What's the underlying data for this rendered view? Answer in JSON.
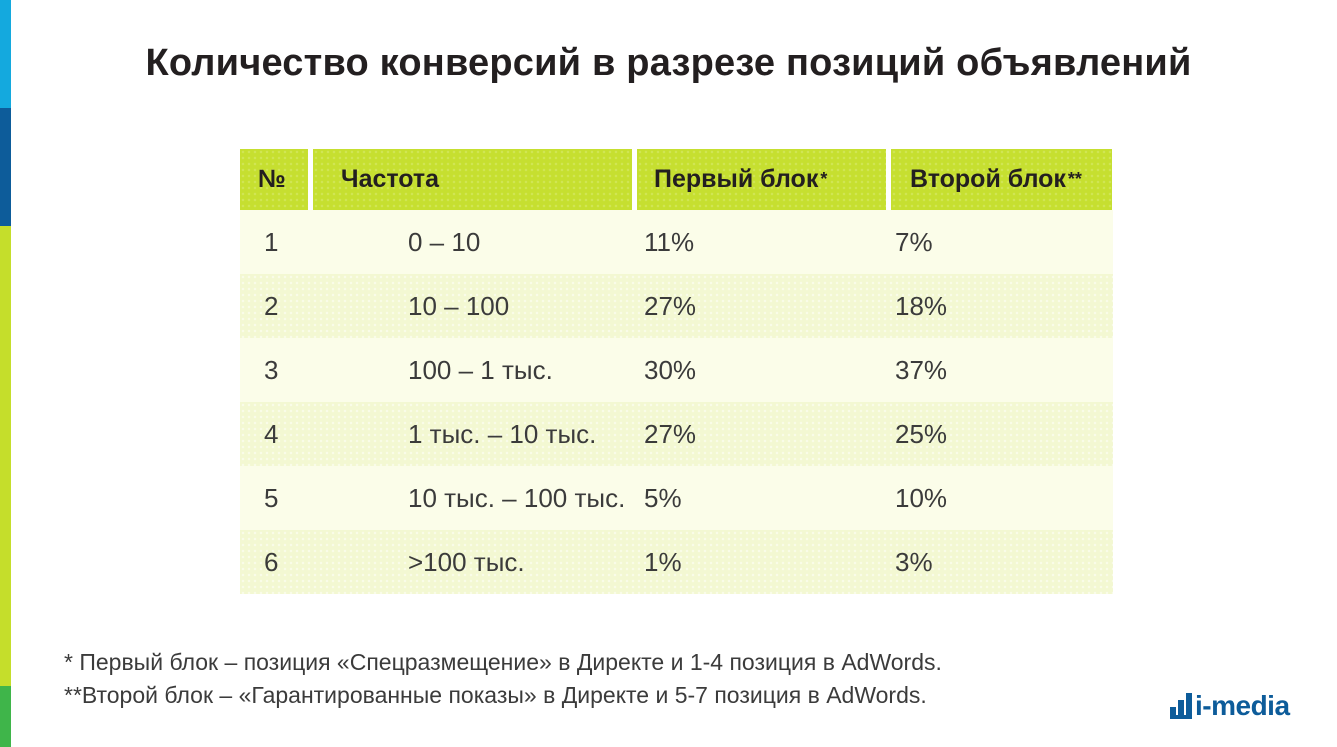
{
  "title": "Количество конверсий в разрезе позиций объявлений",
  "table": {
    "headers": {
      "num": "№",
      "freq": "Частота",
      "first": "Первый блок",
      "first_mark": "*",
      "second": "Второй блок",
      "second_mark": "**"
    },
    "rows": [
      {
        "num": "1",
        "freq": "0 – 10",
        "first": "11%",
        "second": "7%"
      },
      {
        "num": "2",
        "freq": "10 – 100",
        "first": "27%",
        "second": "18%"
      },
      {
        "num": "3",
        "freq": "100 – 1 тыс.",
        "first": "30%",
        "second": "37%"
      },
      {
        "num": "4",
        "freq": "1 тыс. – 10 тыс.",
        "first": "27%",
        "second": "25%"
      },
      {
        "num": "5",
        "freq": "10 тыс. – 100 тыс.",
        "first": "5%",
        "second": "10%"
      },
      {
        "num": "6",
        "freq": ">100 тыс.",
        "first": "1%",
        "second": "3%"
      }
    ]
  },
  "footnotes": [
    "*  Первый блок – позиция «Спецразмещение» в Директе и 1-4 позиция в AdWords.",
    "**Второй блок – «Гарантированные показы» в Директе и 5-7 позиция в AdWords."
  ],
  "logo": {
    "text": "i-media"
  },
  "colors": {
    "header_green": "#c6df30",
    "stripe_cyan": "#14a9de",
    "stripe_navy": "#0d5c9a",
    "stripe_lime": "#c5de2b",
    "stripe_green": "#3fb54a",
    "logo_blue": "#0d5c9a"
  }
}
